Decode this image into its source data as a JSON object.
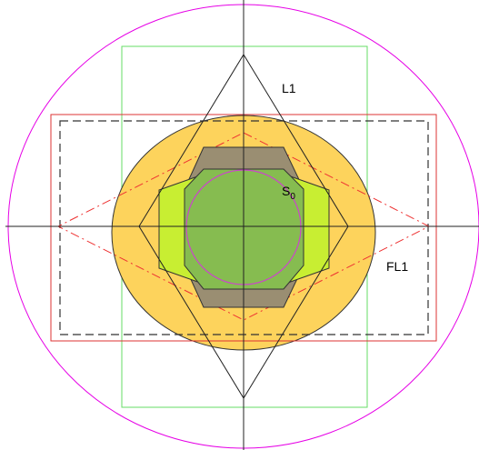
{
  "labels": {
    "l1": "L1",
    "s0_base": "S",
    "s0_sub": "0",
    "fl1": "FL1"
  },
  "colors": {
    "background": "#ffffff",
    "outer_circle": "#e600e6",
    "green_rect": "#66dd66",
    "red_rect": "#dd3333",
    "dashed_rect": "#333333",
    "red_dashed_rhombus": "#ee3333",
    "orange_ellipse_fill": "#fdd35c",
    "orange_ellipse_stroke": "#333333",
    "lime_octagon_fill": "#c8ee32",
    "gray_octagon_fill": "#9a8e72",
    "green_octagon_fill": "#86bc50",
    "inner_circle": "#cc44cc",
    "rhombus_stroke": "#222222",
    "axes": "#222222"
  }
}
